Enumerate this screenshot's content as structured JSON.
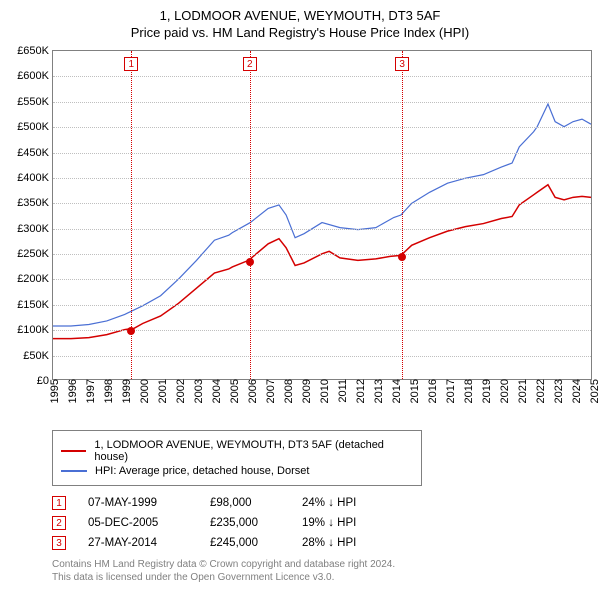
{
  "title": "1, LODMOOR AVENUE, WEYMOUTH, DT3 5AF",
  "subtitle": "Price paid vs. HM Land Registry's House Price Index (HPI)",
  "chart": {
    "type": "line",
    "background_color": "#ffffff",
    "grid_color": "#bfbfbf",
    "border_color": "#808080",
    "x": {
      "min": 1995,
      "max": 2025,
      "ticks": [
        1995,
        1996,
        1997,
        1998,
        1999,
        2000,
        2001,
        2002,
        2003,
        2004,
        2005,
        2006,
        2007,
        2008,
        2009,
        2010,
        2011,
        2012,
        2013,
        2014,
        2015,
        2016,
        2017,
        2018,
        2019,
        2020,
        2021,
        2022,
        2023,
        2024,
        2025
      ]
    },
    "y": {
      "min": 0,
      "max": 650000,
      "tick_step": 50000,
      "tick_labels": [
        "£0",
        "£50K",
        "£100K",
        "£150K",
        "£200K",
        "£250K",
        "£300K",
        "£350K",
        "£400K",
        "£450K",
        "£500K",
        "£550K",
        "£600K",
        "£650K"
      ]
    },
    "series": [
      {
        "key": "property",
        "label": "1, LODMOOR AVENUE, WEYMOUTH, DT3 5AF (detached house)",
        "color": "#d40000",
        "line_width": 1.5,
        "points": [
          [
            1995,
            80000
          ],
          [
            1996,
            80000
          ],
          [
            1997,
            82000
          ],
          [
            1998,
            88000
          ],
          [
            1999,
            98000
          ],
          [
            1999.5,
            100000
          ],
          [
            2000,
            110000
          ],
          [
            2001,
            125000
          ],
          [
            2002,
            150000
          ],
          [
            2003,
            180000
          ],
          [
            2004,
            210000
          ],
          [
            2004.8,
            218000
          ],
          [
            2005,
            222000
          ],
          [
            2005.9,
            235000
          ],
          [
            2006,
            238000
          ],
          [
            2007,
            268000
          ],
          [
            2007.6,
            278000
          ],
          [
            2008,
            260000
          ],
          [
            2008.5,
            225000
          ],
          [
            2009,
            230000
          ],
          [
            2010,
            248000
          ],
          [
            2010.4,
            253000
          ],
          [
            2011,
            240000
          ],
          [
            2012,
            235000
          ],
          [
            2013,
            238000
          ],
          [
            2013.8,
            243000
          ],
          [
            2014.4,
            245000
          ],
          [
            2015,
            265000
          ],
          [
            2016,
            280000
          ],
          [
            2017,
            293000
          ],
          [
            2018,
            302000
          ],
          [
            2019,
            308000
          ],
          [
            2020,
            318000
          ],
          [
            2020.6,
            322000
          ],
          [
            2021,
            345000
          ],
          [
            2021.8,
            365000
          ],
          [
            2022,
            370000
          ],
          [
            2022.6,
            385000
          ],
          [
            2023,
            360000
          ],
          [
            2023.5,
            355000
          ],
          [
            2024,
            360000
          ],
          [
            2024.5,
            362000
          ],
          [
            2025,
            360000
          ]
        ]
      },
      {
        "key": "hpi",
        "label": "HPI: Average price, detached house, Dorset",
        "color": "#4a6fd4",
        "line_width": 1.2,
        "points": [
          [
            1995,
            105000
          ],
          [
            1996,
            105000
          ],
          [
            1997,
            108000
          ],
          [
            1998,
            115000
          ],
          [
            1999,
            128000
          ],
          [
            2000,
            145000
          ],
          [
            2001,
            165000
          ],
          [
            2002,
            198000
          ],
          [
            2003,
            235000
          ],
          [
            2004,
            275000
          ],
          [
            2004.8,
            285000
          ],
          [
            2005,
            290000
          ],
          [
            2006,
            310000
          ],
          [
            2007,
            338000
          ],
          [
            2007.6,
            345000
          ],
          [
            2008,
            325000
          ],
          [
            2008.5,
            280000
          ],
          [
            2009,
            288000
          ],
          [
            2010,
            310000
          ],
          [
            2011,
            300000
          ],
          [
            2012,
            296000
          ],
          [
            2013,
            300000
          ],
          [
            2014,
            320000
          ],
          [
            2014.4,
            325000
          ],
          [
            2015,
            348000
          ],
          [
            2016,
            370000
          ],
          [
            2017,
            388000
          ],
          [
            2018,
            398000
          ],
          [
            2019,
            405000
          ],
          [
            2020,
            420000
          ],
          [
            2020.6,
            428000
          ],
          [
            2021,
            460000
          ],
          [
            2021.8,
            490000
          ],
          [
            2022,
            500000
          ],
          [
            2022.6,
            545000
          ],
          [
            2023,
            510000
          ],
          [
            2023.5,
            500000
          ],
          [
            2024,
            510000
          ],
          [
            2024.5,
            515000
          ],
          [
            2025,
            505000
          ]
        ]
      }
    ],
    "sale_markers": [
      {
        "n": "1",
        "x": 1999.35,
        "price": 98000,
        "color": "#d40000"
      },
      {
        "n": "2",
        "x": 2005.93,
        "price": 235000,
        "color": "#d40000"
      },
      {
        "n": "3",
        "x": 2014.4,
        "price": 245000,
        "color": "#d40000"
      }
    ]
  },
  "legend": {
    "items": [
      {
        "color": "#d40000",
        "label": "1, LODMOOR AVENUE, WEYMOUTH, DT3 5AF (detached house)"
      },
      {
        "color": "#4a6fd4",
        "label": "HPI: Average price, detached house, Dorset"
      }
    ]
  },
  "sales": [
    {
      "n": "1",
      "date": "07-MAY-1999",
      "price": "£98,000",
      "diff": "24% ↓ HPI",
      "color": "#d40000"
    },
    {
      "n": "2",
      "date": "05-DEC-2005",
      "price": "£235,000",
      "diff": "19% ↓ HPI",
      "color": "#d40000"
    },
    {
      "n": "3",
      "date": "27-MAY-2014",
      "price": "£245,000",
      "diff": "28% ↓ HPI",
      "color": "#d40000"
    }
  ],
  "footer": {
    "line1": "Contains HM Land Registry data © Crown copyright and database right 2024.",
    "line2": "This data is licensed under the Open Government Licence v3.0."
  }
}
